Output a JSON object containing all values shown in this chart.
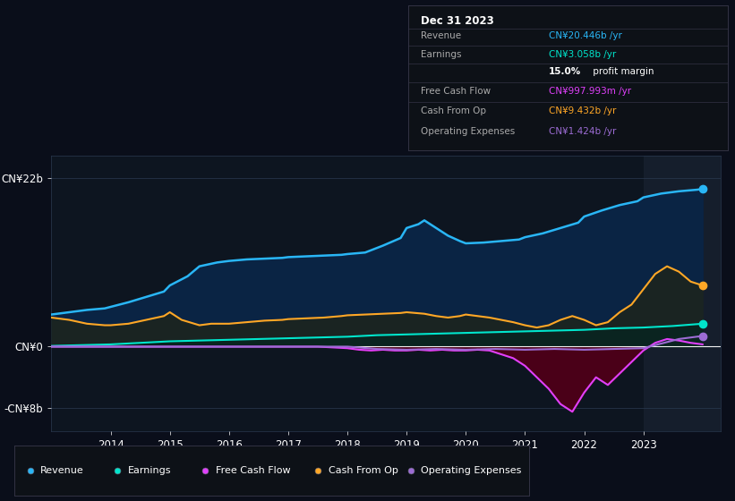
{
  "bg_color": "#0a0e1a",
  "plot_bg_color": "#0d1520",
  "yticks": [
    "CN¥22b",
    "CN¥0",
    "-CN¥8b"
  ],
  "ytick_vals": [
    22,
    0,
    -8
  ],
  "ylim": [
    -11,
    25
  ],
  "xlim": [
    2013.0,
    2024.3
  ],
  "xticks": [
    2014,
    2015,
    2016,
    2017,
    2018,
    2019,
    2020,
    2021,
    2022,
    2023
  ],
  "legend": [
    "Revenue",
    "Earnings",
    "Free Cash Flow",
    "Cash From Op",
    "Operating Expenses"
  ],
  "legend_colors": [
    "#29b6f6",
    "#00e5cc",
    "#e040fb",
    "#ffa726",
    "#9c6cd4"
  ],
  "info_box": {
    "date": "Dec 31 2023",
    "rows": [
      {
        "label": "Revenue",
        "value": "CN¥20.446b /yr",
        "vcolor": "#29b6f6"
      },
      {
        "label": "Earnings",
        "value": "CN¥3.058b /yr",
        "vcolor": "#00e5cc"
      },
      {
        "label": "",
        "value": "15.0% profit margin",
        "vcolor": "#ffffff"
      },
      {
        "label": "Free Cash Flow",
        "value": "CN¥997.993m /yr",
        "vcolor": "#e040fb"
      },
      {
        "label": "Cash From Op",
        "value": "CN¥9.432b /yr",
        "vcolor": "#ffa726"
      },
      {
        "label": "Operating Expenses",
        "value": "CN¥1.424b /yr",
        "vcolor": "#9c6cd4"
      }
    ]
  },
  "revenue_x": [
    2013.0,
    2013.3,
    2013.6,
    2013.9,
    2014.0,
    2014.3,
    2014.6,
    2014.9,
    2015.0,
    2015.3,
    2015.5,
    2015.8,
    2016.0,
    2016.3,
    2016.6,
    2016.9,
    2017.0,
    2017.3,
    2017.6,
    2017.9,
    2018.0,
    2018.3,
    2018.6,
    2018.9,
    2019.0,
    2019.2,
    2019.3,
    2019.5,
    2019.7,
    2019.9,
    2020.0,
    2020.3,
    2020.6,
    2020.9,
    2021.0,
    2021.3,
    2021.6,
    2021.9,
    2022.0,
    2022.3,
    2022.6,
    2022.9,
    2023.0,
    2023.3,
    2023.6,
    2023.9,
    2024.0
  ],
  "revenue_y": [
    4.2,
    4.5,
    4.8,
    5.0,
    5.2,
    5.8,
    6.5,
    7.2,
    8.0,
    9.2,
    10.5,
    11.0,
    11.2,
    11.4,
    11.5,
    11.6,
    11.7,
    11.8,
    11.9,
    12.0,
    12.1,
    12.3,
    13.2,
    14.2,
    15.5,
    16.0,
    16.5,
    15.5,
    14.5,
    13.8,
    13.5,
    13.6,
    13.8,
    14.0,
    14.3,
    14.8,
    15.5,
    16.2,
    17.0,
    17.8,
    18.5,
    19.0,
    19.5,
    20.0,
    20.3,
    20.5,
    20.6
  ],
  "cash_from_op_x": [
    2013.0,
    2013.3,
    2013.6,
    2013.9,
    2014.0,
    2014.3,
    2014.6,
    2014.9,
    2015.0,
    2015.2,
    2015.5,
    2015.7,
    2016.0,
    2016.3,
    2016.6,
    2016.9,
    2017.0,
    2017.3,
    2017.6,
    2017.9,
    2018.0,
    2018.3,
    2018.6,
    2018.9,
    2019.0,
    2019.3,
    2019.5,
    2019.7,
    2019.9,
    2020.0,
    2020.2,
    2020.4,
    2020.6,
    2020.8,
    2021.0,
    2021.2,
    2021.4,
    2021.6,
    2021.8,
    2022.0,
    2022.2,
    2022.4,
    2022.6,
    2022.8,
    2023.0,
    2023.2,
    2023.4,
    2023.6,
    2023.8,
    2024.0
  ],
  "cash_from_op_y": [
    3.8,
    3.5,
    3.0,
    2.8,
    2.8,
    3.0,
    3.5,
    4.0,
    4.5,
    3.5,
    2.8,
    3.0,
    3.0,
    3.2,
    3.4,
    3.5,
    3.6,
    3.7,
    3.8,
    4.0,
    4.1,
    4.2,
    4.3,
    4.4,
    4.5,
    4.3,
    4.0,
    3.8,
    4.0,
    4.2,
    4.0,
    3.8,
    3.5,
    3.2,
    2.8,
    2.5,
    2.8,
    3.5,
    4.0,
    3.5,
    2.8,
    3.2,
    4.5,
    5.5,
    7.5,
    9.5,
    10.5,
    9.8,
    8.5,
    8.0
  ],
  "earnings_x": [
    2013.0,
    2013.5,
    2014.0,
    2014.5,
    2015.0,
    2015.5,
    2016.0,
    2016.5,
    2017.0,
    2017.5,
    2018.0,
    2018.5,
    2019.0,
    2019.5,
    2020.0,
    2020.5,
    2021.0,
    2021.5,
    2022.0,
    2022.5,
    2023.0,
    2023.5,
    2024.0
  ],
  "earnings_y": [
    0.1,
    0.2,
    0.3,
    0.5,
    0.7,
    0.8,
    0.9,
    1.0,
    1.1,
    1.2,
    1.3,
    1.5,
    1.6,
    1.7,
    1.8,
    1.9,
    2.0,
    2.1,
    2.2,
    2.4,
    2.5,
    2.7,
    3.0
  ],
  "free_cash_flow_x": [
    2013.0,
    2013.5,
    2014.0,
    2014.5,
    2015.0,
    2015.5,
    2016.0,
    2016.5,
    2017.0,
    2017.5,
    2018.0,
    2018.2,
    2018.4,
    2018.6,
    2018.8,
    2019.0,
    2019.2,
    2019.4,
    2019.6,
    2019.8,
    2020.0,
    2020.2,
    2020.4,
    2020.6,
    2020.8,
    2021.0,
    2021.2,
    2021.4,
    2021.6,
    2021.8,
    2022.0,
    2022.2,
    2022.4,
    2022.6,
    2022.8,
    2023.0,
    2023.2,
    2023.4,
    2023.6,
    2023.8,
    2024.0
  ],
  "free_cash_flow_y": [
    0.0,
    0.0,
    0.0,
    0.0,
    0.0,
    0.0,
    0.0,
    0.0,
    0.0,
    0.0,
    -0.2,
    -0.4,
    -0.5,
    -0.4,
    -0.5,
    -0.5,
    -0.4,
    -0.5,
    -0.4,
    -0.5,
    -0.5,
    -0.4,
    -0.5,
    -1.0,
    -1.5,
    -2.5,
    -4.0,
    -5.5,
    -7.5,
    -8.5,
    -6.0,
    -4.0,
    -5.0,
    -3.5,
    -2.0,
    -0.5,
    0.5,
    1.0,
    0.8,
    0.5,
    0.3
  ],
  "operating_expenses_x": [
    2013.0,
    2014.0,
    2015.0,
    2016.0,
    2017.0,
    2018.0,
    2018.5,
    2019.0,
    2019.5,
    2020.0,
    2020.5,
    2021.0,
    2021.5,
    2022.0,
    2022.5,
    2023.0,
    2023.2,
    2023.4,
    2023.6,
    2023.8,
    2024.0
  ],
  "operating_expenses_y": [
    0.0,
    0.0,
    0.0,
    0.0,
    0.0,
    0.0,
    -0.3,
    -0.4,
    -0.3,
    -0.4,
    -0.3,
    -0.4,
    -0.3,
    -0.4,
    -0.3,
    -0.2,
    0.2,
    0.6,
    1.0,
    1.2,
    1.4
  ],
  "forecast_start_x": 2023.0
}
